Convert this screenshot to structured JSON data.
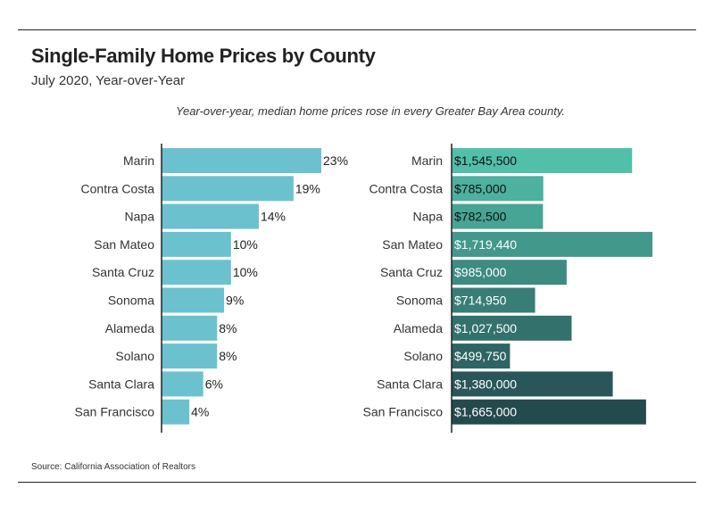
{
  "title": "Single-Family Home Prices by County",
  "subtitle": "July 2020, Year-over-Year",
  "annotation": "Year-over-year, median home prices rose in every Greater Bay Area county.",
  "source": "Source:  California Association of Realtors",
  "chart_data": [
    {
      "type": "bar",
      "orientation": "horizontal",
      "categories": [
        "Marin",
        "Contra Costa",
        "Napa",
        "San Mateo",
        "Santa Cruz",
        "Sonoma",
        "Alameda",
        "Solano",
        "Santa Clara",
        "San Francisco"
      ],
      "values": [
        23,
        19,
        14,
        10,
        10,
        9,
        8,
        8,
        6,
        4
      ],
      "value_labels": [
        "23%",
        "19%",
        "14%",
        "10%",
        "10%",
        "9%",
        "8%",
        "8%",
        "6%",
        "4%"
      ],
      "xlim": [
        0,
        23
      ],
      "bar_color": "#6cc1cf"
    },
    {
      "type": "bar",
      "orientation": "horizontal",
      "categories": [
        "Marin",
        "Contra Costa",
        "Napa",
        "San Mateo",
        "Santa Cruz",
        "Sonoma",
        "Alameda",
        "Solano",
        "Santa Clara",
        "San Francisco"
      ],
      "values": [
        1545500,
        785000,
        782500,
        1719440,
        985000,
        714950,
        1027500,
        499750,
        1380000,
        1665000
      ],
      "value_labels": [
        "$1,545,500",
        "$785,000",
        "$782,500",
        "$1,719,440",
        "$985,000",
        "$714,950",
        "$1,027,500",
        "$499,750",
        "$1,380,000",
        "$1,665,000"
      ],
      "xlim": [
        0,
        1719440
      ],
      "bar_colors": [
        "#52bfa9",
        "#4cb19f",
        "#47a595",
        "#42988b",
        "#3d8b81",
        "#387e77",
        "#33716d",
        "#2e6463",
        "#295759",
        "#234a4d"
      ]
    }
  ]
}
